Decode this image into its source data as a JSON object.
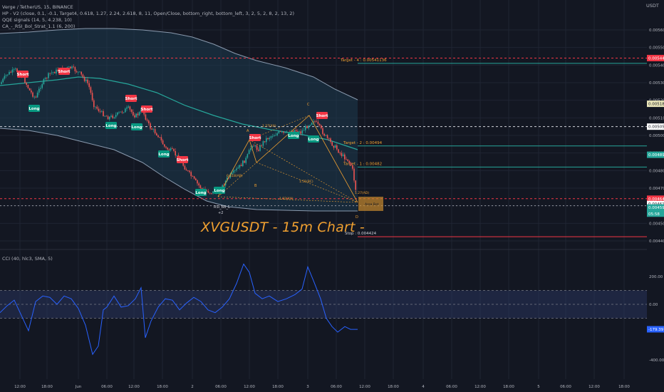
{
  "header": {
    "symbol_line": "Verge / TetherUS, 15, BINANCE",
    "indicators": [
      "HP - V2 (close, 0.1, -0.1, Target4, 0.618, 1.27, 2.24, 2.618, 8, 11, Open/Close, bottom_right, bottom_left, 3, 2, 5, 2, 8, 2, 13, 2)",
      "QQE signals (14, 5, 4.238, 10)",
      "CA_-_RSI_Bol_Strat_1.1 (6, 200)"
    ],
    "currency": "USDT"
  },
  "watermark": "XVGUSDT - 15m Chart -",
  "chart_data": [
    {
      "type": "line",
      "title": "",
      "price_ticks": [
        "0.00560",
        "0.00550",
        "0.00540",
        "0.00530",
        "0.00520",
        "0.00510",
        "0.00500",
        "0.00490",
        "0.00480",
        "0.00470",
        "0.00460",
        "0.00450",
        "0.00440"
      ],
      "ylim": [
        0.00435,
        0.00567
      ],
      "price_badges": [
        {
          "value": "0.00544",
          "price": 0.00544,
          "bg": "#f23645",
          "fg": "#ffffff"
        },
        {
          "value": "0.00518",
          "price": 0.00518,
          "bg": "#e8e4b8",
          "fg": "#131722"
        },
        {
          "value": "0.00505",
          "price": 0.00505,
          "bg": "#ffffff",
          "fg": "#131722"
        },
        {
          "value": "0.00489",
          "price": 0.00489,
          "bg": "#26a69a",
          "fg": "#ffffff"
        },
        {
          "value": "0.00464",
          "price": 0.00464,
          "bg": "#f23645",
          "fg": "#ffffff"
        },
        {
          "value": "0.00461",
          "price": 0.00461,
          "bg": "#ffffff",
          "fg": "#131722"
        },
        {
          "value": "0.00459",
          "price": 0.00459,
          "bg": "#26a69a",
          "fg": "#ffffff"
        },
        {
          "value": "05:58",
          "price": 0.004555,
          "bg": "#26a69a",
          "fg": "#ffffff"
        }
      ],
      "targets": [
        {
          "label": "Target - 4 : 0.00541136",
          "price": 0.00541,
          "color": "#26a69a"
        },
        {
          "label": "Target - 2 : 0.00494",
          "price": 0.00494,
          "color": "#26a69a"
        },
        {
          "label": "Target - 1 : 0.00482",
          "price": 0.00482,
          "color": "#26a69a"
        },
        {
          "label": "Stop : 0.004424",
          "price": 0.004424,
          "color": "#f23645"
        }
      ],
      "pattern_labels": {
        "x": "X",
        "a": "A",
        "b": "B",
        "c": "C",
        "d": "D",
        "entry": "Area Bot",
        "rsi_label": "RSI_BB_L",
        "rsi_val": "+2"
      },
      "ratio_labels": [
        "0.618(AB)",
        "1.27(XA)",
        "1.55(BC)",
        "1.92(XA)",
        "1.27(AD)"
      ],
      "signals": [
        {
          "text": "Short",
          "type": "short"
        },
        {
          "text": "Long",
          "type": "long"
        },
        {
          "text": "Short",
          "type": "short"
        },
        {
          "text": "Long",
          "type": "long"
        },
        {
          "text": "Short",
          "type": "short"
        },
        {
          "text": "Long",
          "type": "long"
        },
        {
          "text": "Short",
          "type": "short"
        },
        {
          "text": "Long",
          "type": "long"
        },
        {
          "text": "Short",
          "type": "short"
        },
        {
          "text": "Long",
          "type": "long"
        },
        {
          "text": "Long",
          "type": "long"
        },
        {
          "text": "Short",
          "type": "short"
        },
        {
          "text": "Long",
          "type": "long"
        },
        {
          "text": "Short",
          "type": "short"
        },
        {
          "text": "Long",
          "type": "long"
        }
      ]
    },
    {
      "type": "line",
      "title": "CCI (40, hlc3, SMA, 5)",
      "cci_ticks": [
        "200.00",
        "0.00",
        "-400.00"
      ],
      "ylim": [
        -440,
        300
      ],
      "cci_badge": "-179.39",
      "cci_value": -179.39
    }
  ],
  "time_axis": [
    "12:00",
    "18:00",
    "Jun",
    "06:00",
    "12:00",
    "18:00",
    "2",
    "06:00",
    "12:00",
    "18:00",
    "3",
    "06:00",
    "12:00",
    "18:00",
    "4",
    "06:00",
    "12:00",
    "18:00",
    "5",
    "06:00",
    "12:00",
    "18:00"
  ]
}
